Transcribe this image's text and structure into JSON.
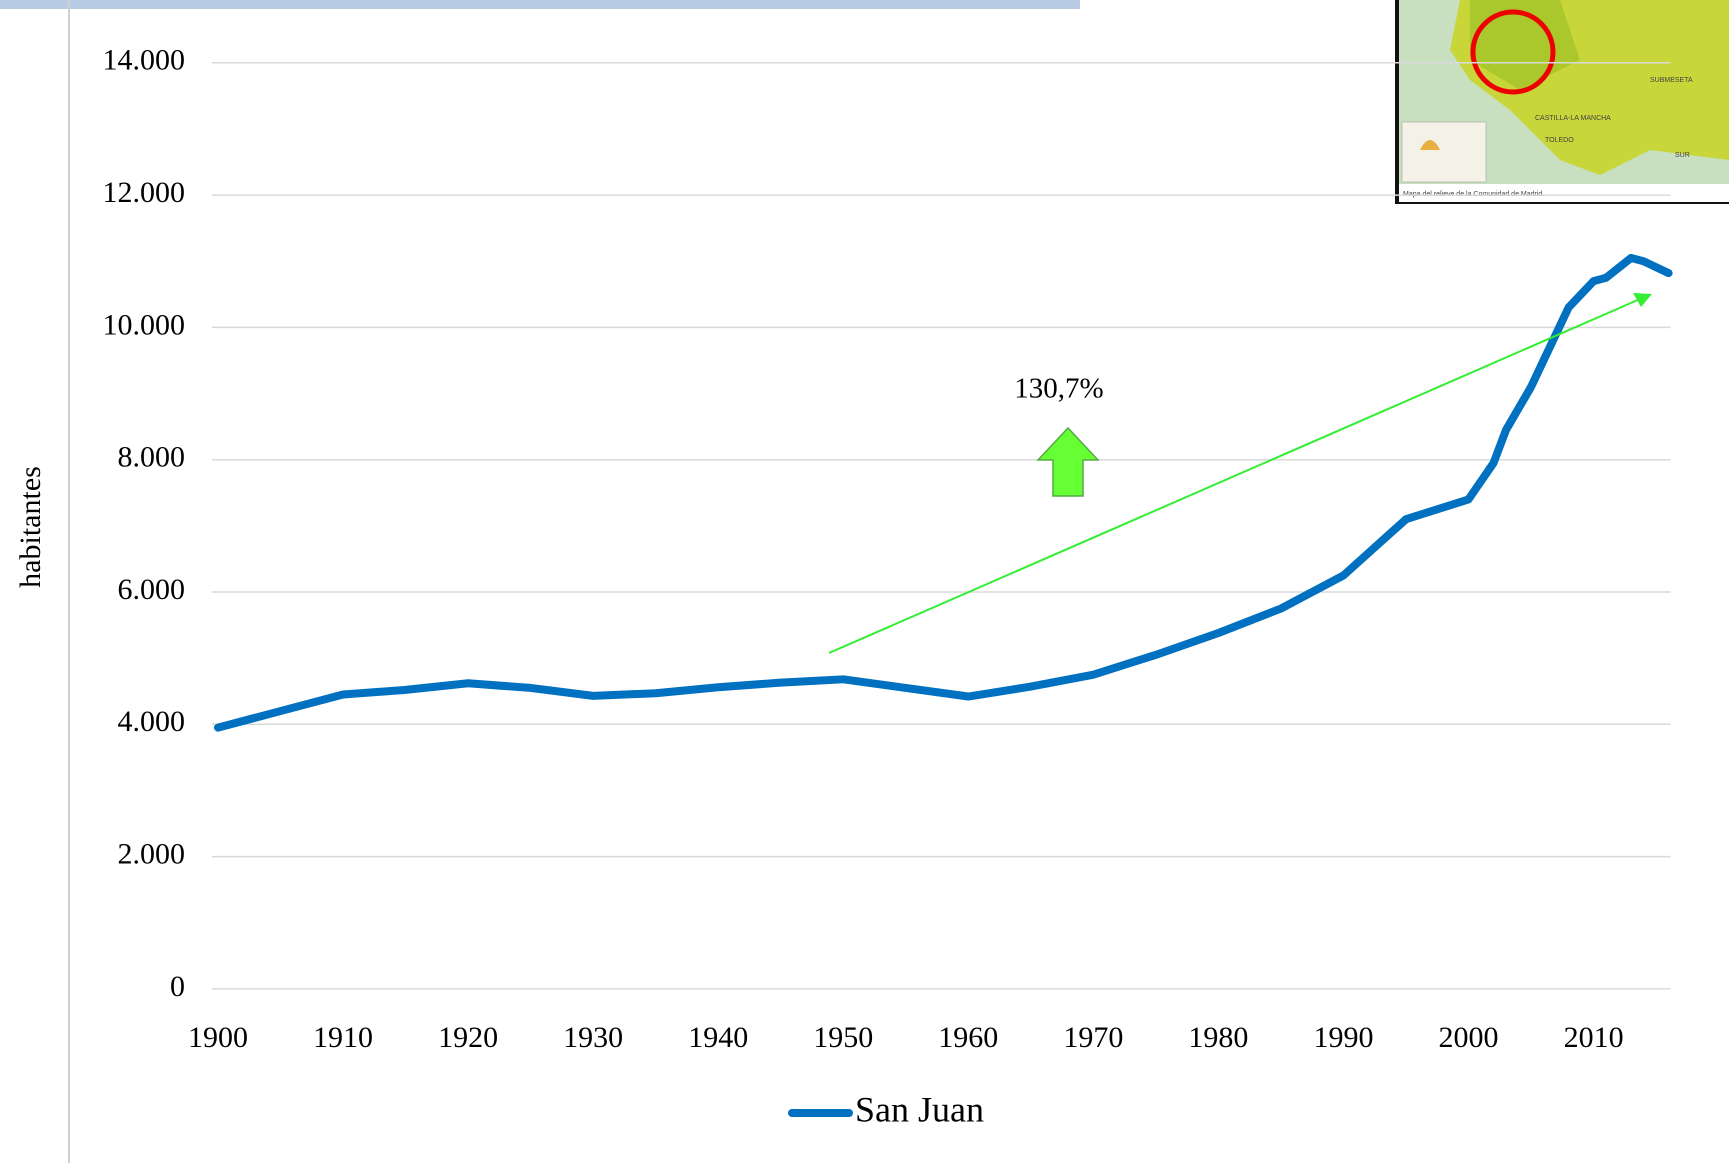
{
  "chart_data": {
    "type": "line",
    "y_label": "habitantes",
    "annotation": "130,7%",
    "x": [
      1900,
      1905,
      1910,
      1915,
      1920,
      1925,
      1930,
      1935,
      1940,
      1945,
      1950,
      1955,
      1960,
      1965,
      1970,
      1975,
      1980,
      1985,
      1990,
      1995,
      2000,
      2002,
      2003,
      2005,
      2007,
      2008,
      2010,
      2011,
      2013,
      2014,
      2016
    ],
    "series": [
      {
        "name": "San Juan",
        "color": "#0070c0",
        "values": [
          3950,
          4200,
          4450,
          4520,
          4620,
          4550,
          4430,
          4470,
          4560,
          4630,
          4680,
          4550,
          4420,
          4570,
          4750,
          5050,
          5380,
          5750,
          6250,
          7100,
          7400,
          7950,
          8450,
          9100,
          9900,
          10300,
          10700,
          10750,
          11050,
          11000,
          10820
        ]
      }
    ],
    "xlim": [
      1900,
      2016
    ],
    "xticks": [
      1900,
      1910,
      1920,
      1930,
      1940,
      1950,
      1960,
      1970,
      1980,
      1990,
      2000,
      2010
    ],
    "ylim": [
      0,
      14000
    ],
    "yticks": [
      0,
      {
        "value": 2000,
        "label": "2.000"
      },
      {
        "value": 4000,
        "label": "4.000"
      },
      {
        "value": 6000,
        "label": "6.000"
      },
      {
        "value": 8000,
        "label": "8.000"
      },
      {
        "value": 10000,
        "label": "10.000"
      },
      {
        "value": 12000,
        "label": "12.000"
      },
      {
        "value": 14000,
        "label": "14.000"
      }
    ],
    "grid": true,
    "legend": "bottom"
  },
  "map_inset": {
    "caption": "Mapa del relieve de la Comunidad de Madrid.",
    "labels": [
      "SUBMESETA",
      "CASTILLA-LA MANCHA",
      "TOLEDO",
      "SUR"
    ]
  }
}
